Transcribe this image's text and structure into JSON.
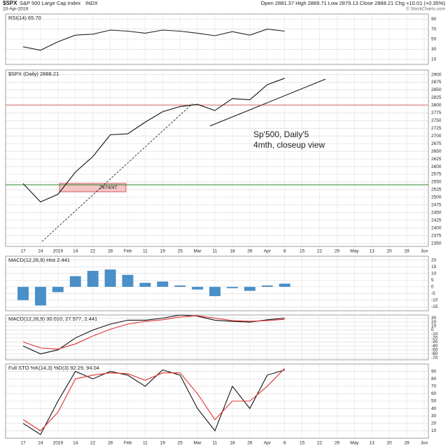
{
  "header": {
    "symbol": "$SPX",
    "name": "S&P 500 Large Cap Index",
    "exchange": "INDX",
    "date": "10-Apr-2019",
    "quote": "Open 2881.37  High 2889.71  Low 2879.13  Close 2888.21  Chg +10.01 (+0.35%)",
    "watermark": "© StockCharts.com"
  },
  "chart_data": [
    {
      "type": "line",
      "label": "RSI(14) 65.70",
      "ylim": [
        0,
        100
      ],
      "yticks": [
        90,
        70,
        50,
        30,
        10
      ],
      "grid": true,
      "series": [
        {
          "name": "RSI(14)",
          "color": "#222222",
          "values": [
            35,
            28,
            45,
            58,
            60,
            68,
            66,
            62,
            68,
            66,
            62,
            57,
            65,
            58,
            70,
            66,
            null,
            null,
            null,
            null,
            null,
            null,
            null,
            null
          ]
        }
      ]
    },
    {
      "type": "line",
      "label": "$SPX (Daily) 2888.21",
      "annotations": [
        "Sp'500, Daily'5",
        "4mth, closeup view",
        "2474/47"
      ],
      "categories": [
        "17",
        "24",
        "2019",
        "14",
        "22",
        "28",
        "Feb",
        "11",
        "19",
        "25",
        "Mar",
        "11",
        "18",
        "26",
        "Apr",
        "8",
        "15",
        "22",
        "29",
        "May",
        "13",
        "20",
        "28",
        "Jun"
      ],
      "ylim": [
        2340,
        2915
      ],
      "yticks": [
        2350,
        2375,
        2400,
        2425,
        2450,
        2475,
        2500,
        2525,
        2550,
        2575,
        2600,
        2625,
        2650,
        2675,
        2700,
        2725,
        2750,
        2775,
        2800,
        2825,
        2850,
        2875,
        2900
      ],
      "grid": true,
      "series": [
        {
          "name": "$SPX",
          "color": "#111111",
          "values": [
            2545,
            2485,
            2510,
            2582,
            2633,
            2704,
            2707,
            2745,
            2779,
            2796,
            2803,
            2783,
            2822,
            2818,
            2867,
            2888,
            null,
            null,
            null,
            null,
            null,
            null,
            null,
            null
          ]
        }
      ]
    },
    {
      "type": "bar",
      "label": "MACD(12,26,9) Hist 2.441",
      "ylim": [
        -18,
        23
      ],
      "yticks": [
        20,
        15,
        10,
        5,
        0,
        -5,
        -10,
        -15
      ],
      "grid": true,
      "series": [
        {
          "name": "Hist",
          "color": "#4a8fc7",
          "values": [
            -10,
            -14,
            -4,
            8,
            12,
            13,
            9,
            3,
            4,
            1,
            -2,
            -7,
            -1,
            -3,
            1,
            2.4,
            null,
            null,
            null,
            null,
            null,
            null,
            null,
            null
          ]
        }
      ]
    },
    {
      "type": "line",
      "label": "MACD(12,26,9) 30.010, 27.577, 2.441",
      "ylim": [
        -75,
        38
      ],
      "yticks": [
        30,
        20,
        10,
        0,
        -10,
        -20,
        -30,
        -40,
        -50,
        -60,
        -70
      ],
      "grid": true,
      "series": [
        {
          "name": "MACD",
          "color": "#111111",
          "values": [
            -40,
            -60,
            -50,
            -20,
            0,
            15,
            25,
            25,
            30,
            38,
            35,
            25,
            22,
            20,
            26,
            30,
            null,
            null,
            null,
            null,
            null,
            null,
            null,
            null
          ]
        },
        {
          "name": "Signal",
          "color": "#e03030",
          "values": [
            -30,
            -45,
            -48,
            -35,
            -15,
            2,
            15,
            22,
            26,
            33,
            36,
            30,
            24,
            22,
            24,
            27,
            null,
            null,
            null,
            null,
            null,
            null,
            null,
            null
          ]
        }
      ]
    },
    {
      "type": "line",
      "label": "Full STO %K(14,3) %D(3) 92.29, 94.04",
      "categories": [
        "17",
        "24",
        "2019",
        "14",
        "22",
        "28",
        "Feb",
        "11",
        "19",
        "25",
        "Mar",
        "11",
        "18",
        "26",
        "Apr",
        "8",
        "15",
        "22",
        "29",
        "May",
        "13",
        "20",
        "28",
        "Jun"
      ],
      "ylim": [
        0,
        100
      ],
      "yticks": [
        90,
        80,
        70,
        60,
        50,
        40,
        30,
        20,
        10
      ],
      "grid": true,
      "series": [
        {
          "name": "%K",
          "color": "#111111",
          "values": [
            20,
            5,
            50,
            90,
            80,
            90,
            85,
            70,
            92,
            85,
            40,
            10,
            70,
            40,
            85,
            92,
            null,
            null,
            null,
            null,
            null,
            null,
            null,
            null
          ]
        },
        {
          "name": "%D",
          "color": "#e03030",
          "values": [
            25,
            10,
            35,
            80,
            85,
            88,
            87,
            78,
            88,
            88,
            60,
            25,
            50,
            50,
            70,
            94,
            null,
            null,
            null,
            null,
            null,
            null,
            null,
            null
          ]
        }
      ]
    }
  ]
}
